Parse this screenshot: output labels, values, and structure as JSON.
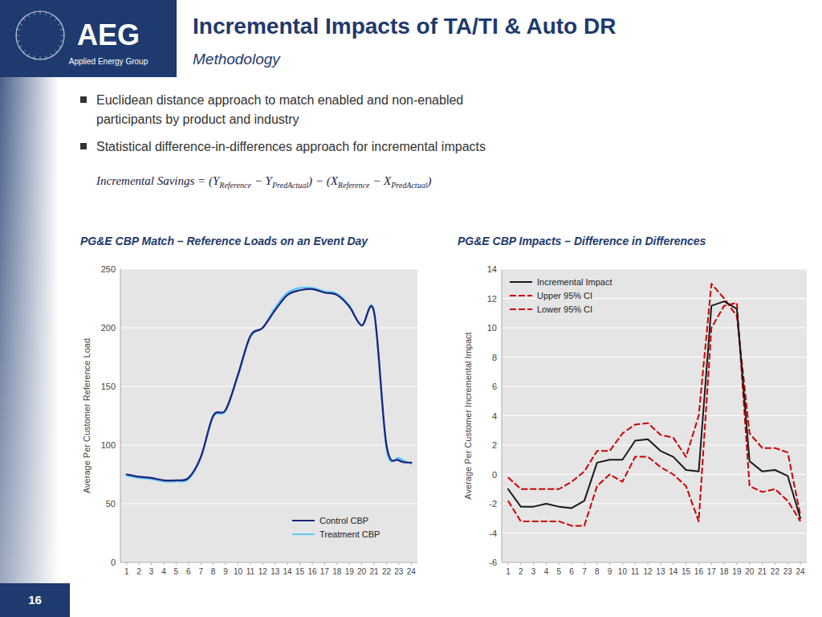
{
  "title": "Incremental Impacts of TA/TI & Auto DR",
  "subtitle": "Methodology",
  "logo": "AEG",
  "logo_subtitle": "Applied Energy Group",
  "bullets": [
    [
      "Euclidean distance approach to match enabled and non-enabled",
      "participants by product and industry"
    ],
    [
      "Statistical difference-in-differences approach for incremental impacts"
    ]
  ],
  "formula": [
    {
      "text": "Incremental Savings = (Y",
      "sub": false
    },
    {
      "text": "Reference",
      "sub": true
    },
    {
      "text": " − Y",
      "sub": false
    },
    {
      "text": "PredActual",
      "sub": true
    },
    {
      "text": ") − (X",
      "sub": false
    },
    {
      "text": "Reference",
      "sub": true
    },
    {
      "text": " − X",
      "sub": false
    },
    {
      "text": "PredActual",
      "sub": true
    },
    {
      "text": ")",
      "sub": false
    }
  ],
  "slide_number": "16",
  "chart_data": [
    {
      "type": "spline",
      "title": "PG&E CBP Match – Reference Loads on an Event Day",
      "ylabel": "Average Per Customer Reference Load",
      "x": [
        1,
        2,
        3,
        4,
        5,
        6,
        7,
        8,
        9,
        10,
        11,
        12,
        13,
        14,
        15,
        16,
        17,
        18,
        19,
        20,
        21,
        22,
        23,
        24
      ],
      "xlim": [
        0.5,
        24.5
      ],
      "xticks": [
        1,
        2,
        3,
        4,
        5,
        6,
        7,
        8,
        9,
        10,
        11,
        12,
        13,
        14,
        15,
        16,
        17,
        18,
        19,
        20,
        21,
        22,
        23,
        24
      ],
      "ylim": [
        0,
        250
      ],
      "yticks": [
        0,
        50,
        100,
        150,
        200,
        250
      ],
      "grid": true,
      "legend": "lower right",
      "series": [
        {
          "name": "Control CBP",
          "color": "#1a237e",
          "line_style": "solid",
          "values": [
            75,
            73,
            72,
            70,
            70,
            72,
            90,
            125,
            130,
            160,
            193,
            200,
            215,
            228,
            232,
            233,
            230,
            228,
            218,
            202,
            213,
            100,
            87,
            85
          ]
        },
        {
          "name": "Treatment CBP",
          "color": "#5bc8f5",
          "line_style": "solid",
          "values": [
            74,
            72,
            71,
            69,
            69,
            71,
            89,
            124,
            129,
            159,
            192,
            200,
            217,
            230,
            234,
            234,
            231,
            229,
            219,
            202,
            214,
            97,
            89,
            84
          ]
        }
      ]
    },
    {
      "type": "line",
      "title": "PG&E CBP Impacts – Difference in Differences",
      "ylabel": "Average Per Customer Incremental Impact",
      "x": [
        1,
        2,
        3,
        4,
        5,
        6,
        7,
        8,
        9,
        10,
        11,
        12,
        13,
        14,
        15,
        16,
        17,
        18,
        19,
        20,
        21,
        22,
        23,
        24
      ],
      "xlim": [
        0.5,
        24.5
      ],
      "xticks": [
        1,
        2,
        3,
        4,
        5,
        6,
        7,
        8,
        9,
        10,
        11,
        12,
        13,
        14,
        15,
        16,
        17,
        18,
        19,
        20,
        21,
        22,
        23,
        24
      ],
      "ylim": [
        -6,
        14
      ],
      "yticks": [
        -6,
        -4,
        -2,
        0,
        2,
        4,
        6,
        8,
        10,
        12,
        14
      ],
      "grid": true,
      "legend": "upper left",
      "series": [
        {
          "name": "Incremental Impact",
          "color": "#1a1a1a",
          "line_style": "solid",
          "values": [
            -1.0,
            -2.2,
            -2.2,
            -2.0,
            -2.2,
            -2.3,
            -1.8,
            0.8,
            1.0,
            1.0,
            2.3,
            2.4,
            1.6,
            1.2,
            0.3,
            0.2,
            11.5,
            11.8,
            11.3,
            0.9,
            0.2,
            0.3,
            -0.1,
            -3.0
          ]
        },
        {
          "name": "Upper 95% CI",
          "color": "#cc0000",
          "line_style": "dashed",
          "values": [
            -0.2,
            -1.0,
            -1.0,
            -1.0,
            -1.0,
            -0.5,
            0.2,
            1.6,
            1.6,
            2.8,
            3.4,
            3.5,
            2.7,
            2.5,
            1.2,
            4.0,
            13.0,
            12.0,
            10.8,
            2.8,
            1.8,
            1.8,
            1.5,
            -2.8
          ]
        },
        {
          "name": "Lower 95% CI",
          "color": "#cc0000",
          "line_style": "dashed",
          "values": [
            -1.8,
            -3.2,
            -3.2,
            -3.2,
            -3.2,
            -3.5,
            -3.5,
            -0.8,
            0.0,
            -0.5,
            1.2,
            1.2,
            0.5,
            0.0,
            -0.8,
            -3.2,
            10.0,
            11.5,
            11.7,
            -0.8,
            -1.2,
            -1.0,
            -1.8,
            -3.2
          ]
        }
      ]
    }
  ]
}
